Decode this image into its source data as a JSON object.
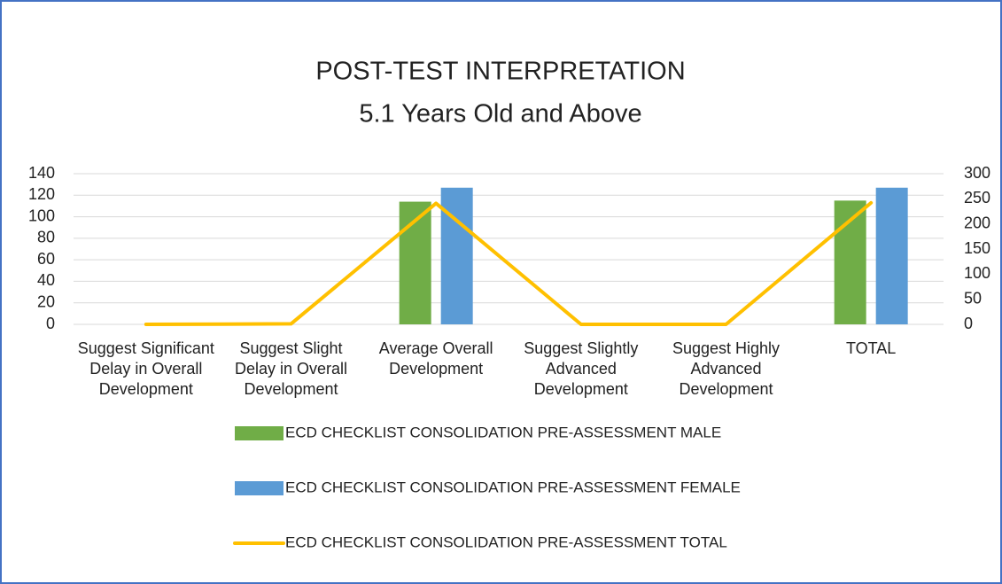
{
  "chart_data": {
    "type": "bar",
    "title": "POST-TEST INTERPRETATION",
    "subtitle": "5.1 Years Old and Above",
    "categories": [
      "Suggest Significant Delay in Overall Development",
      "Suggest Slight Delay in Overall Development",
      "Average Overall Development",
      "Suggest Slightly Advanced Development",
      "Suggest Highly Advanced Development",
      "TOTAL"
    ],
    "series": [
      {
        "name": "ECD CHECKLIST CONSOLIDATION PRE-ASSESSMENT MALE",
        "color": "#70ad47",
        "type": "bar",
        "values": [
          0,
          1,
          114,
          0,
          0,
          115
        ]
      },
      {
        "name": "ECD CHECKLIST CONSOLIDATION PRE-ASSESSMENT FEMALE",
        "color": "#5b9bd5",
        "type": "bar",
        "values": [
          0,
          0,
          127,
          0,
          0,
          127
        ]
      },
      {
        "name": "ECD CHECKLIST CONSOLIDATION PRE-ASSESSMENT TOTAL",
        "color": "#ffc000",
        "type": "line",
        "axis": "y2",
        "values": [
          0,
          1,
          241,
          0,
          0,
          242
        ]
      }
    ],
    "ylim": [
      0,
      140
    ],
    "yticks": [
      0,
      20,
      40,
      60,
      80,
      100,
      120,
      140
    ],
    "y2lim": [
      0,
      300
    ],
    "y2ticks": [
      0,
      50,
      100,
      150,
      200,
      250,
      300
    ],
    "grid": true,
    "legend": "bottom"
  }
}
